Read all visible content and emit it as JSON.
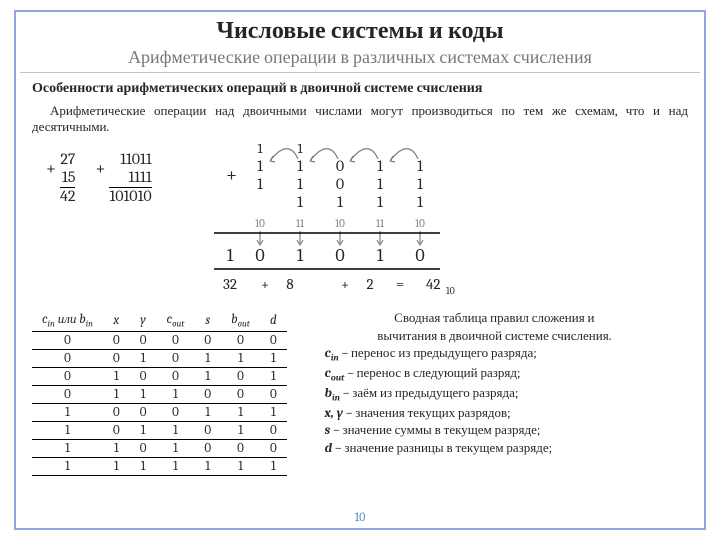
{
  "title": "Числовые системы и коды",
  "subtitle": "Арифметические операции в различных системах счисления",
  "section_heading": "Особенности арифметических операций в двоичной системе счисления",
  "paragraph": "Арифметические операции над двоичными числами могут производиться по тем же схемам, что и над десятичными.",
  "addition_decimal": {
    "a": "27",
    "b": "15",
    "sum": "42"
  },
  "addition_binary": {
    "a": "11011",
    "b": "1111",
    "sum": "101010"
  },
  "detailed_addition": {
    "carry_top": [
      "1",
      "1",
      "",
      "",
      ""
    ],
    "carry_second": [
      "1",
      "1",
      "0",
      "1",
      "1"
    ],
    "row_a": [
      "1",
      "1",
      "0",
      "1",
      "1"
    ],
    "row_b": [
      "",
      "1",
      "1",
      "1",
      "1"
    ],
    "pair_sums": [
      "10",
      "11",
      "10",
      "11",
      "10"
    ],
    "result_bits": [
      "1",
      "0",
      "1",
      "0",
      "1",
      "0"
    ],
    "weights_line": "32 + 8        + 2        = 42",
    "weights_sub": "10",
    "colors": {
      "arrow": "#7f7f7f",
      "text": "#262626",
      "small": "#7f7f7f"
    }
  },
  "truth_table": {
    "headers": [
      "c_in или b_in",
      "x",
      "y",
      "c_out",
      "s",
      "b_out",
      "d"
    ],
    "rows": [
      [
        "0",
        "0",
        "0",
        "0",
        "0",
        "0",
        "0"
      ],
      [
        "0",
        "0",
        "1",
        "0",
        "1",
        "1",
        "1"
      ],
      [
        "0",
        "1",
        "0",
        "0",
        "1",
        "0",
        "1"
      ],
      [
        "0",
        "1",
        "1",
        "1",
        "0",
        "0",
        "0"
      ],
      [
        "1",
        "0",
        "0",
        "0",
        "1",
        "1",
        "1"
      ],
      [
        "1",
        "0",
        "1",
        "1",
        "0",
        "1",
        "0"
      ],
      [
        "1",
        "1",
        "0",
        "1",
        "0",
        "0",
        "0"
      ],
      [
        "1",
        "1",
        "1",
        "1",
        "1",
        "1",
        "1"
      ]
    ]
  },
  "legend": {
    "lead1": "Сводная таблица правил сложения и",
    "lead2": "вычитания в двоичной системе счисления.",
    "cin": "– перенос из предыдущего разряда;",
    "cout": "– перенос  в следующий разряд;",
    "bin": "– заём из предыдущего разряда;",
    "xy": "– значения текущих разрядов;",
    "s": "– значение суммы в текущем разряде;",
    "d": "– значение разницы в текущем разряде;",
    "labels": {
      "cin": "c_in",
      "cout": "c_out",
      "bin": "b_in",
      "xy": "x, y",
      "s": "s",
      "d": "d"
    }
  },
  "page_number": "10",
  "style": {
    "frame_border": "#8ea9db",
    "subtitle_color": "#777777",
    "pagenum_color": "#4f81bd",
    "rule_color": "#c4c4c4"
  }
}
